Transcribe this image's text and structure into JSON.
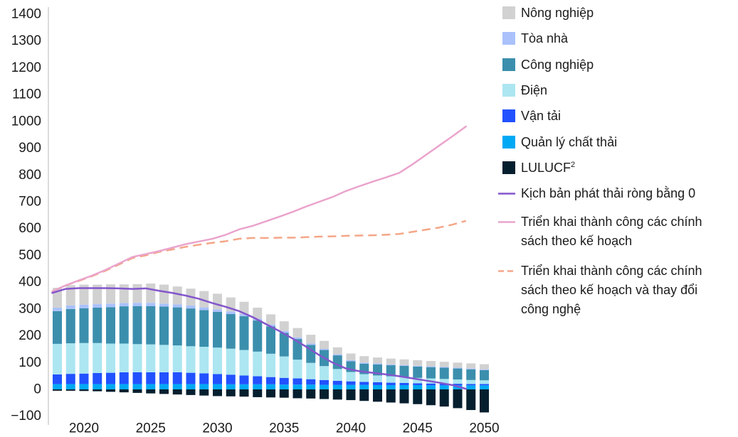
{
  "chart_data": {
    "type": "bar",
    "stacked": true,
    "grid": false,
    "legend": "right",
    "ylim": [
      -100,
      1400
    ],
    "yticks": [
      -100,
      0,
      100,
      200,
      300,
      400,
      500,
      600,
      700,
      800,
      900,
      1000,
      1100,
      1200,
      1300,
      1400
    ],
    "ytick_labels": [
      "−100",
      "0",
      "100",
      "200",
      "300",
      "400",
      "500",
      "600",
      "700",
      "800",
      "900",
      "1000",
      "1100",
      "1200",
      "1300",
      "1400"
    ],
    "xticks": [
      2020,
      2025,
      2030,
      2035,
      2040,
      2045,
      2050
    ],
    "xtick_labels": [
      "2020",
      "2025",
      "2030",
      "2035",
      "2040",
      "2045",
      "2050"
    ],
    "x": [
      2018,
      2019,
      2020,
      2021,
      2022,
      2023,
      2024,
      2025,
      2026,
      2027,
      2028,
      2029,
      2030,
      2031,
      2032,
      2033,
      2034,
      2035,
      2036,
      2037,
      2038,
      2039,
      2040,
      2041,
      2042,
      2043,
      2044,
      2045,
      2046,
      2047,
      2048,
      2049,
      2050
    ],
    "series": [
      {
        "name": "Nông nghiệp",
        "color": "#d1d1d1",
        "values": [
          74,
          76,
          75,
          73,
          72,
          70,
          70,
          72,
          71,
          67,
          63,
          61,
          58,
          52,
          46,
          41,
          38,
          36,
          35,
          33,
          30,
          26,
          25,
          24,
          22,
          22,
          21,
          21,
          20,
          19,
          19,
          19,
          19
        ]
      },
      {
        "name": "Tòa nhà",
        "color": "#aac1fb",
        "values": [
          13,
          13,
          13,
          13,
          13,
          12,
          12,
          12,
          11,
          11,
          11,
          10,
          10,
          10,
          8,
          7,
          7,
          7,
          6,
          5,
          4,
          4,
          4,
          4,
          4,
          3,
          3,
          3,
          3,
          3,
          3,
          3,
          3
        ]
      },
      {
        "name": "Công nghiệp",
        "color": "#3b8fad",
        "values": [
          122,
          128,
          130,
          132,
          136,
          139,
          142,
          143,
          143,
          142,
          141,
          137,
          133,
          129,
          126,
          116,
          102,
          88,
          77,
          67,
          60,
          51,
          40,
          39,
          41,
          41,
          42,
          42,
          42,
          42,
          41,
          40,
          38
        ]
      },
      {
        "name": "Điện",
        "color": "#ace6f1",
        "values": [
          114,
          114,
          114,
          112,
          109,
          107,
          105,
          104,
          102,
          100,
          99,
          99,
          99,
          97,
          95,
          92,
          87,
          80,
          70,
          61,
          52,
          44,
          35,
          29,
          25,
          24,
          22,
          20,
          19,
          18,
          16,
          15,
          14
        ]
      },
      {
        "name": "Vận tải",
        "color": "#2251ff",
        "values": [
          36,
          38,
          39,
          41,
          42,
          44,
          44,
          44,
          44,
          44,
          42,
          40,
          37,
          36,
          33,
          30,
          27,
          25,
          23,
          20,
          18,
          15,
          13,
          11,
          11,
          9,
          8,
          7,
          7,
          6,
          6,
          5,
          5
        ]
      },
      {
        "name": "Quản lý chất thải",
        "color": "#00a9f4",
        "values": [
          20,
          20,
          20,
          20,
          20,
          20,
          20,
          20,
          20,
          20,
          20,
          20,
          20,
          19,
          19,
          19,
          19,
          18,
          18,
          18,
          17,
          17,
          17,
          17,
          16,
          16,
          16,
          16,
          15,
          15,
          15,
          15,
          15
        ]
      },
      {
        "name": "LULUCF",
        "footnote": "2",
        "color": "#061f2f",
        "values": [
          -5,
          -5,
          -6,
          -7,
          -9,
          -11,
          -13,
          -15,
          -17,
          -19,
          -21,
          -23,
          -25,
          -26,
          -27,
          -29,
          -30,
          -31,
          -33,
          -34,
          -36,
          -38,
          -40,
          -43,
          -46,
          -49,
          -52,
          -55,
          -59,
          -64,
          -70,
          -77,
          -86
        ]
      }
    ],
    "lines": [
      {
        "name": "Kịch bản phát thải ròng bằng 0",
        "color": "#8356cc",
        "dashed": false,
        "x": [
          2018,
          2019,
          2020,
          2021,
          2022,
          2023,
          2024,
          2025,
          2026,
          2027,
          2028,
          2029,
          2030,
          2031,
          2032,
          2033,
          2034,
          2035,
          2036,
          2037,
          2038,
          2039,
          2040,
          2041,
          2042,
          2043,
          2044,
          2045,
          2046,
          2047,
          2048,
          2049
        ],
        "values": [
          360,
          375,
          378,
          378,
          378,
          377,
          375,
          377,
          368,
          360,
          350,
          338,
          322,
          308,
          292,
          270,
          244,
          218,
          190,
          160,
          128,
          100,
          78,
          68,
          62,
          56,
          49,
          41,
          33,
          25,
          16,
          2
        ]
      },
      {
        "name": "Triển khai thành công các chính sách theo kế hoạch",
        "color": "#eaa4cc",
        "dashed": false,
        "x": [
          2018,
          2019,
          2020,
          2021,
          2022,
          2023,
          2024,
          2025,
          2026,
          2027,
          2028,
          2029,
          2030,
          2031,
          2032,
          2033,
          2034,
          2035,
          2036,
          2037,
          2038,
          2039,
          2040,
          2041,
          2042,
          2043,
          2044,
          2045,
          2046,
          2047,
          2048,
          2049
        ],
        "values": [
          366,
          388,
          407,
          425,
          446,
          470,
          494,
          505,
          516,
          529,
          542,
          552,
          562,
          577,
          597,
          610,
          627,
          644,
          662,
          682,
          700,
          718,
          740,
          758,
          775,
          791,
          808,
          840,
          875,
          910,
          945,
          981
        ]
      },
      {
        "name": "Triển khai thành công các chính sách theo kế hoạch và thay đổi công nghệ",
        "color": "#f4a688",
        "dashed": true,
        "x": [
          2018,
          2019,
          2020,
          2021,
          2022,
          2023,
          2024,
          2025,
          2026,
          2027,
          2028,
          2029,
          2030,
          2031,
          2032,
          2033,
          2034,
          2035,
          2036,
          2037,
          2038,
          2039,
          2040,
          2041,
          2042,
          2043,
          2044,
          2045,
          2046,
          2047,
          2048,
          2049
        ],
        "values": [
          366,
          388,
          405,
          423,
          443,
          466,
          490,
          500,
          513,
          522,
          532,
          540,
          547,
          553,
          562,
          565,
          565,
          566,
          566,
          568,
          570,
          571,
          573,
          574,
          575,
          577,
          580,
          588,
          596,
          604,
          615,
          629
        ]
      }
    ]
  }
}
